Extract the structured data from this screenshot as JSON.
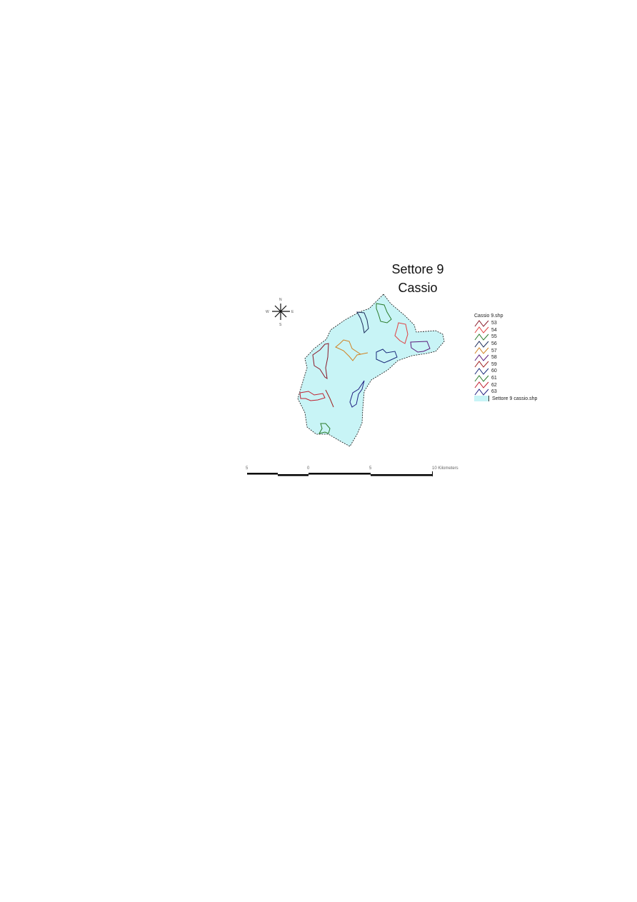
{
  "title": {
    "line1": "Settore 9",
    "line2": "Cassio"
  },
  "compass": {
    "n": "N",
    "s": "S",
    "e": "E",
    "w": "W"
  },
  "legend": {
    "layer_title": "Cassio 9.shp",
    "items": [
      {
        "label": "53",
        "color": "#8b1a2a"
      },
      {
        "label": "54",
        "color": "#e04040"
      },
      {
        "label": "55",
        "color": "#2a7a2a"
      },
      {
        "label": "56",
        "color": "#1a2a5a"
      },
      {
        "label": "57",
        "color": "#d08020"
      },
      {
        "label": "58",
        "color": "#5a1a7a"
      },
      {
        "label": "59",
        "color": "#a02020"
      },
      {
        "label": "60",
        "color": "#1a2a7a"
      },
      {
        "label": "61",
        "color": "#2a7a2a"
      },
      {
        "label": "62",
        "color": "#c02030"
      },
      {
        "label": "63",
        "color": "#202080"
      }
    ],
    "area_layer": {
      "label": "Settore 9 cassio.shp",
      "color": "#c8f4f6"
    }
  },
  "scale_bar": {
    "labels": [
      "5",
      "0",
      "5",
      "10 Kilometers"
    ]
  }
}
